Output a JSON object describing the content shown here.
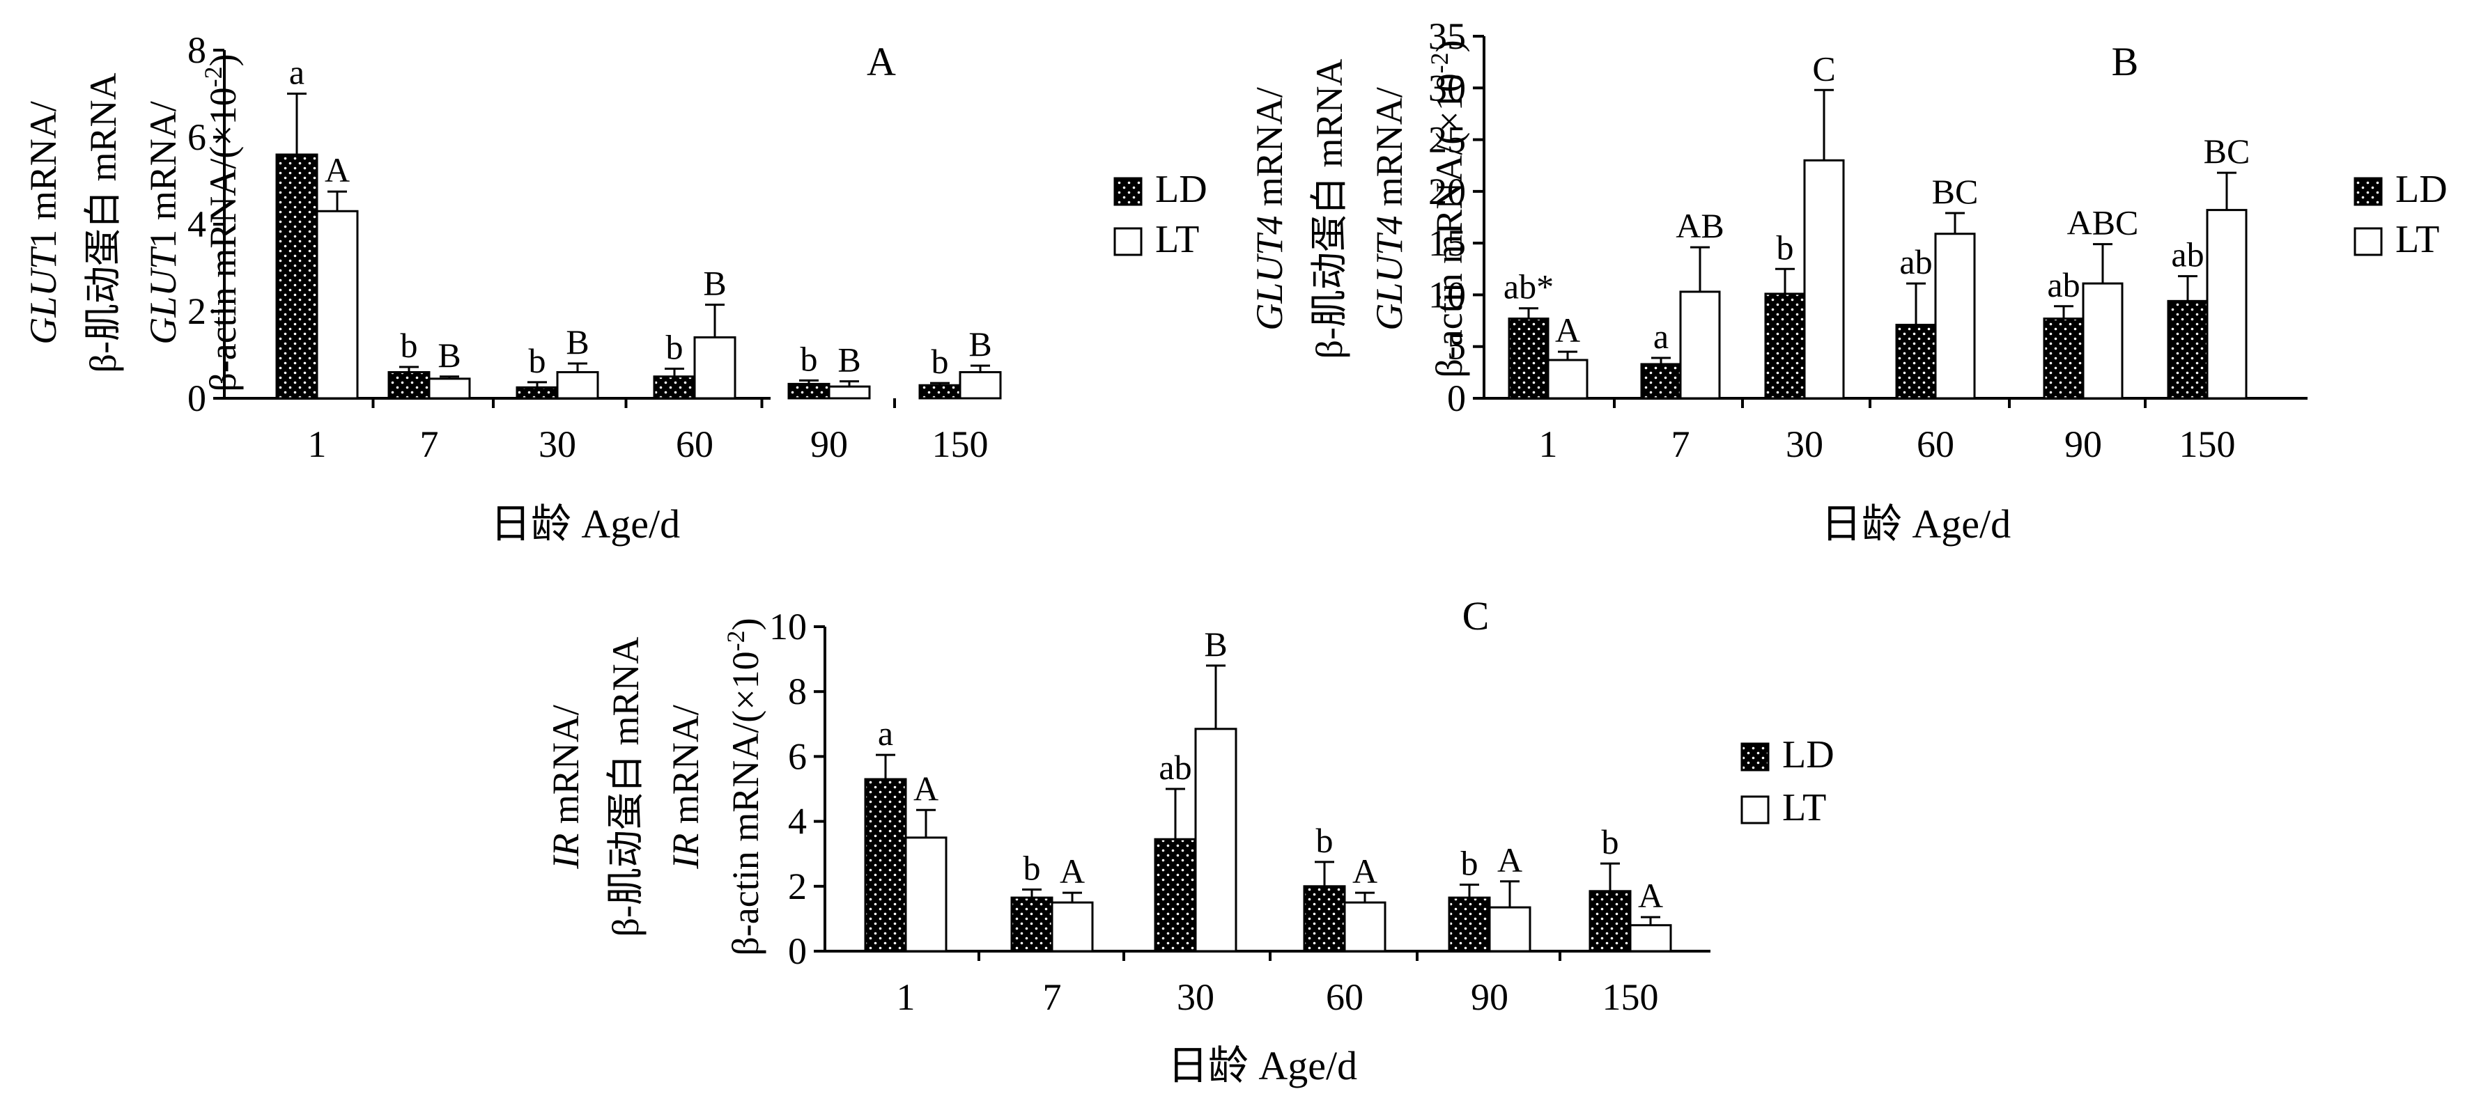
{
  "chart_data": [
    {
      "type": "bar",
      "panel_label": "A",
      "categories": [
        "1",
        "7",
        "30",
        "60",
        "90",
        "150"
      ],
      "series": [
        {
          "name": "LD",
          "values": [
            5.6,
            0.6,
            0.25,
            0.5,
            0.33,
            0.3
          ],
          "errors": [
            1.4,
            0.12,
            0.12,
            0.18,
            0.08,
            0.05
          ],
          "labels": [
            "a",
            "b",
            "b",
            "b",
            "b",
            "b"
          ],
          "fill": "#000000",
          "pattern": "dotted"
        },
        {
          "name": "LT",
          "values": [
            4.3,
            0.45,
            0.6,
            1.4,
            0.27,
            0.6
          ],
          "errors": [
            0.45,
            0.05,
            0.2,
            0.75,
            0.12,
            0.15
          ],
          "labels": [
            "A",
            "B",
            "B",
            "B",
            "B",
            "B"
          ],
          "fill": "#ffffff",
          "pattern": "none"
        }
      ],
      "ylim": [
        0,
        8
      ],
      "yticks": [
        "0",
        "2",
        "4",
        "6",
        "8"
      ],
      "ylabel_lines": [
        [
          {
            "text": "GLUT",
            "italic": true
          },
          {
            "text": "1 mRNA/",
            "italic": false
          }
        ],
        [
          {
            "text": "β-肌动蛋白  mRNA",
            "italic": false
          }
        ],
        [
          {
            "text": "GLUT",
            "italic": true
          },
          {
            "text": "1 mRNA/",
            "italic": false
          }
        ],
        [
          {
            "text": "β-actin mRNA/(×10",
            "italic": false
          },
          {
            "text": "-2",
            "italic": false,
            "sup": true
          },
          {
            "text": ")",
            "italic": false
          }
        ]
      ],
      "xlabel": "日龄   Age/d",
      "legend": [
        "LD",
        "LT"
      ]
    },
    {
      "type": "bar",
      "panel_label": "B",
      "categories": [
        "1",
        "7",
        "30",
        "60",
        "90",
        "150"
      ],
      "series": [
        {
          "name": "LD",
          "values": [
            7.7,
            3.3,
            10.1,
            7.1,
            7.7,
            9.4
          ],
          "errors": [
            1.0,
            0.6,
            2.4,
            4.0,
            1.2,
            2.4
          ],
          "labels": [
            "ab*",
            "a",
            "b",
            "ab",
            "ab",
            "ab"
          ],
          "fill": "#000000",
          "pattern": "dotted"
        },
        {
          "name": "LT",
          "values": [
            3.7,
            10.3,
            23.0,
            15.9,
            11.1,
            18.2
          ],
          "errors": [
            0.8,
            4.3,
            6.8,
            2.0,
            3.8,
            3.6
          ],
          "labels": [
            "A",
            "AB",
            "C",
            "BC",
            "ABC",
            "BC"
          ],
          "fill": "#ffffff",
          "pattern": "none"
        }
      ],
      "ylim": [
        0,
        35
      ],
      "yticks": [
        "0",
        "5",
        "10",
        "15",
        "20",
        "25",
        "30",
        "35"
      ],
      "ylabel_lines": [
        [
          {
            "text": "GLUT4",
            "italic": true
          },
          {
            "text": " mRNA/",
            "italic": false
          }
        ],
        [
          {
            "text": "β-肌动蛋白  mRNA",
            "italic": false
          }
        ],
        [
          {
            "text": "GLUT4",
            "italic": true
          },
          {
            "text": " mRNA/",
            "italic": false
          }
        ],
        [
          {
            "text": "β-actin mRNA/(×10",
            "italic": false
          },
          {
            "text": "-2",
            "italic": false,
            "sup": true
          },
          {
            "text": ")",
            "italic": false
          }
        ]
      ],
      "xlabel": "日龄   Age/d",
      "legend": [
        "LD",
        "LT"
      ]
    },
    {
      "type": "bar",
      "panel_label": "C",
      "categories": [
        "1",
        "7",
        "30",
        "60",
        "90",
        "150"
      ],
      "series": [
        {
          "name": "LD",
          "values": [
            5.3,
            1.65,
            3.45,
            2.0,
            1.65,
            1.85
          ],
          "errors": [
            0.75,
            0.25,
            1.55,
            0.75,
            0.4,
            0.85
          ],
          "labels": [
            "a",
            "b",
            "ab",
            "b",
            "b",
            "b"
          ],
          "fill": "#000000",
          "pattern": "dotted"
        },
        {
          "name": "LT",
          "values": [
            3.5,
            1.5,
            6.85,
            1.5,
            1.35,
            0.8
          ],
          "errors": [
            0.85,
            0.3,
            1.95,
            0.3,
            0.8,
            0.25
          ],
          "labels": [
            "A",
            "A",
            "B",
            "A",
            "A",
            "A"
          ],
          "fill": "#ffffff",
          "pattern": "none"
        }
      ],
      "ylim": [
        0,
        10
      ],
      "yticks": [
        "0",
        "2",
        "4",
        "6",
        "8",
        "10"
      ],
      "ylabel_lines": [
        [
          {
            "text": "IR",
            "italic": true
          },
          {
            "text": " mRNA/",
            "italic": false
          }
        ],
        [
          {
            "text": "β-肌动蛋白  mRNA",
            "italic": false
          }
        ],
        [
          {
            "text": "IR",
            "italic": true
          },
          {
            "text": " mRNA/",
            "italic": false
          }
        ],
        [
          {
            "text": "β-actin mRNA/(×10",
            "italic": false
          },
          {
            "text": "-2",
            "italic": false,
            "sup": true
          },
          {
            "text": ")",
            "italic": false
          }
        ]
      ],
      "xlabel": "日龄   Age/d",
      "legend": [
        "LD",
        "LT"
      ]
    }
  ]
}
